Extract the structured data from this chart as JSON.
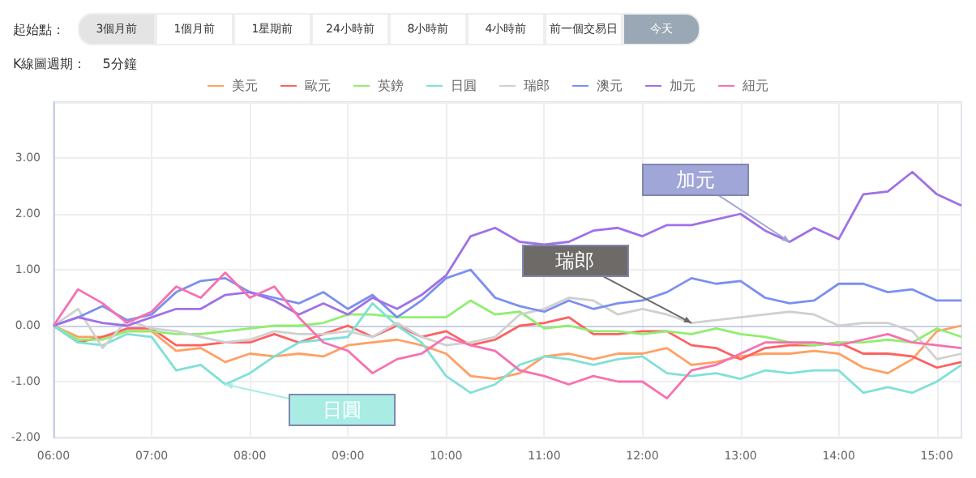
{
  "chart_data": {
    "type": "line",
    "annotations": [
      "起始點：",
      "3個月前",
      "1個月前",
      "1星期前",
      "24小時前",
      "8小時前",
      "4小時前",
      "前一個交易日",
      "今天",
      "K線圖週期：",
      "5分鐘",
      {
        "text": "加元",
        "x": 13.5,
        "y": 1.5
      },
      {
        "text": "瑞郎",
        "x": 12.5,
        "y": 0.05
      },
      {
        "text": "日圓",
        "x": 7.75,
        "y": -1.05
      }
    ],
    "x": [
      6,
      6.25,
      6.5,
      6.75,
      7,
      7.25,
      7.5,
      7.75,
      8,
      8.25,
      8.5,
      8.75,
      9,
      9.25,
      9.5,
      9.75,
      10,
      10.25,
      10.5,
      10.75,
      11,
      11.25,
      11.5,
      11.75,
      12,
      12.25,
      12.5,
      12.75,
      13,
      13.25,
      13.5,
      13.75,
      14,
      14.25,
      14.5,
      14.75,
      15,
      15.25
    ],
    "series": [
      {
        "name": "美元",
        "color": "#ffa064",
        "values": [
          0,
          -0.2,
          -0.2,
          -0.1,
          -0.1,
          -0.45,
          -0.4,
          -0.65,
          -0.5,
          -0.55,
          -0.5,
          -0.55,
          -0.35,
          -0.3,
          -0.25,
          -0.35,
          -0.5,
          -0.9,
          -0.95,
          -0.85,
          -0.55,
          -0.5,
          -0.6,
          -0.5,
          -0.5,
          -0.4,
          -0.7,
          -0.65,
          -0.55,
          -0.5,
          -0.5,
          -0.45,
          -0.5,
          -0.75,
          -0.85,
          -0.6,
          -0.1,
          0
        ]
      },
      {
        "name": "歐元",
        "color": "#ff6060",
        "values": [
          0,
          -0.3,
          -0.2,
          -0.05,
          -0.05,
          -0.35,
          -0.35,
          -0.3,
          -0.3,
          -0.15,
          -0.3,
          -0.15,
          0,
          -0.2,
          0,
          -0.2,
          -0.1,
          -0.35,
          -0.25,
          0,
          0.05,
          0.15,
          -0.15,
          -0.15,
          -0.1,
          -0.1,
          -0.35,
          -0.4,
          -0.6,
          -0.4,
          -0.35,
          -0.35,
          -0.3,
          -0.5,
          -0.5,
          -0.55,
          -0.75,
          -0.65
        ]
      },
      {
        "name": "英鎊",
        "color": "#90ee70",
        "values": [
          0,
          -0.25,
          -0.25,
          -0.1,
          -0.1,
          -0.15,
          -0.15,
          -0.1,
          -0.05,
          0,
          0,
          0.05,
          0.2,
          0.2,
          0.15,
          0.15,
          0.15,
          0.45,
          0.2,
          0.25,
          -0.05,
          0,
          -0.1,
          -0.1,
          -0.15,
          -0.1,
          -0.15,
          -0.05,
          -0.15,
          -0.2,
          -0.3,
          -0.35,
          -0.3,
          -0.3,
          -0.25,
          -0.3,
          -0.05,
          -0.2
        ]
      },
      {
        "name": "日圓",
        "color": "#80e0d8",
        "values": [
          0,
          -0.3,
          -0.35,
          -0.15,
          -0.2,
          -0.8,
          -0.7,
          -1.05,
          -0.85,
          -0.55,
          -0.3,
          -0.25,
          -0.2,
          0.4,
          0,
          -0.3,
          -0.9,
          -1.2,
          -1.05,
          -0.7,
          -0.55,
          -0.6,
          -0.7,
          -0.6,
          -0.55,
          -0.85,
          -0.9,
          -0.85,
          -0.95,
          -0.8,
          -0.85,
          -0.8,
          -0.8,
          -1.2,
          -1.1,
          -1.2,
          -1,
          -0.7
        ]
      },
      {
        "name": "瑞郎",
        "color": "#d0d0d0",
        "values": [
          0,
          0.3,
          -0.4,
          0.1,
          -0.05,
          -0.1,
          -0.2,
          -0.3,
          -0.25,
          -0.1,
          -0.15,
          -0.15,
          -0.1,
          -0.2,
          0.05,
          -0.2,
          -0.35,
          -0.3,
          -0.2,
          0.2,
          0.3,
          0.5,
          0.45,
          0.2,
          0.3,
          0.2,
          0.05,
          0.1,
          0.15,
          0.2,
          0.25,
          0.2,
          0,
          0.05,
          0.05,
          -0.1,
          -0.6,
          -0.5
        ]
      },
      {
        "name": "澳元",
        "color": "#7b8ff0",
        "values": [
          0,
          0.15,
          0.35,
          0.1,
          0.2,
          0.6,
          0.8,
          0.85,
          0.6,
          0.5,
          0.4,
          0.6,
          0.3,
          0.55,
          0.15,
          0.45,
          0.85,
          1,
          0.5,
          0.35,
          0.25,
          0.45,
          0.3,
          0.4,
          0.45,
          0.6,
          0.85,
          0.75,
          0.8,
          0.5,
          0.4,
          0.45,
          0.75,
          0.75,
          0.6,
          0.65,
          0.45,
          0.45
        ]
      },
      {
        "name": "加元",
        "color": "#a070e8",
        "values": [
          0,
          0.15,
          0.05,
          0,
          0.15,
          0.3,
          0.3,
          0.55,
          0.6,
          0.45,
          0.2,
          0.4,
          0.2,
          0.5,
          0.3,
          0.55,
          0.9,
          1.6,
          1.75,
          1.5,
          1.45,
          1.5,
          1.7,
          1.75,
          1.6,
          1.8,
          1.8,
          1.9,
          2,
          1.7,
          1.5,
          1.75,
          1.55,
          2.35,
          2.4,
          2.75,
          2.35,
          2.15
        ]
      },
      {
        "name": "紐元",
        "color": "#f870b0",
        "values": [
          0,
          0.65,
          0.4,
          0.05,
          0.25,
          0.7,
          0.5,
          0.95,
          0.5,
          0.7,
          0.15,
          -0.3,
          -0.45,
          -0.85,
          -0.6,
          -0.5,
          -0.2,
          -0.35,
          -0.45,
          -0.8,
          -0.9,
          -1.05,
          -0.9,
          -1,
          -1,
          -1.3,
          -0.8,
          -0.7,
          -0.5,
          -0.3,
          -0.3,
          -0.3,
          -0.35,
          -0.25,
          -0.15,
          -0.3,
          -0.35,
          -0.4
        ]
      }
    ],
    "xlim": [
      6,
      15.25
    ],
    "xticks": [
      {
        "value": 6,
        "label": "06:00"
      },
      {
        "value": 7,
        "label": "07:00"
      },
      {
        "value": 8,
        "label": "08:00"
      },
      {
        "value": 9,
        "label": "09:00"
      },
      {
        "value": 10,
        "label": "10:00"
      },
      {
        "value": 11,
        "label": "11:00"
      },
      {
        "value": 12,
        "label": "12:00"
      },
      {
        "value": 13,
        "label": "13:00"
      },
      {
        "value": 14,
        "label": "14:00"
      },
      {
        "value": 15,
        "label": "15:00"
      }
    ],
    "ylim": [
      -2,
      4
    ],
    "yticks": [
      {
        "value": -2,
        "label": "-2.00"
      },
      {
        "value": -1,
        "label": "-1.00"
      },
      {
        "value": 0,
        "label": "0.00"
      },
      {
        "value": 1,
        "label": "1.00"
      },
      {
        "value": 2,
        "label": "2.00"
      },
      {
        "value": 3,
        "label": "3.00"
      },
      {
        "value": 4,
        "label": null
      }
    ],
    "grid": true,
    "legend": "top",
    "marker": "none",
    "line_style": "solid"
  }
}
